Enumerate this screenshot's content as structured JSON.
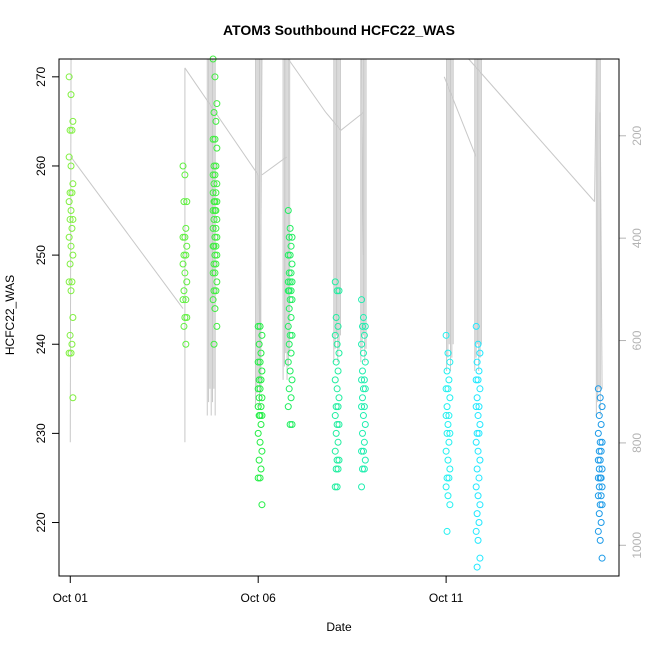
{
  "chart_data": {
    "type": "scatter",
    "title": "ATOM3 Southbound HCFC22_WAS",
    "xlabel": "Date",
    "ylabel": "HCFC22_WAS",
    "x_unit": "days since Oct 01",
    "xlim": [
      -0.3,
      14.6
    ],
    "ylim": [
      214,
      272
    ],
    "x_ticks": [
      {
        "value": 0,
        "label": "Oct 01"
      },
      {
        "value": 5,
        "label": "Oct 06"
      },
      {
        "value": 10,
        "label": "Oct 11"
      }
    ],
    "y_ticks": [
      220,
      230,
      240,
      250,
      260,
      270
    ],
    "right_axis": {
      "label": "",
      "ticks": [
        200,
        400,
        600,
        800,
        1000
      ],
      "range_top_to_bottom": [
        50,
        1060
      ],
      "color": "#b4b4b4"
    },
    "grid": false,
    "point_clusters": [
      {
        "x": 0.02,
        "color": "#80f040",
        "values": [
          270,
          268,
          265,
          264,
          264,
          261,
          260,
          258,
          257,
          257,
          256,
          255,
          254,
          254,
          253,
          252,
          251,
          250,
          249,
          247,
          247,
          246,
          243,
          241,
          240,
          239,
          239,
          234
        ]
      },
      {
        "x": 3.05,
        "color": "#60f040",
        "values": [
          260,
          259,
          256,
          256,
          253,
          252,
          252,
          251,
          250,
          250,
          249,
          248,
          247,
          246,
          245,
          245,
          243,
          243,
          242,
          240
        ]
      },
      {
        "x": 3.85,
        "color": "#40ee40",
        "values": [
          272,
          270,
          267,
          266,
          265,
          263,
          263,
          262,
          260,
          260,
          259,
          259,
          258,
          258,
          257,
          257,
          256,
          256,
          256,
          255,
          255,
          255,
          254,
          254,
          253,
          253,
          252,
          252,
          251,
          251,
          251,
          250,
          250,
          249,
          249,
          248,
          248,
          247,
          246,
          246,
          245,
          244,
          242,
          240
        ]
      },
      {
        "x": 5.05,
        "color": "#22ee44",
        "values": [
          242,
          242,
          241,
          240,
          239,
          238,
          238,
          237,
          236,
          236,
          235,
          235,
          234,
          234,
          233,
          233,
          232,
          232,
          232,
          231,
          230,
          229,
          228,
          227,
          226,
          225,
          225,
          222
        ]
      },
      {
        "x": 5.85,
        "color": "#20ee60",
        "values": [
          255,
          253,
          252,
          252,
          251,
          250,
          250,
          249,
          248,
          248,
          247,
          247,
          247,
          246,
          246,
          246,
          245,
          245,
          244,
          243,
          242,
          241,
          241,
          240,
          239,
          238,
          237,
          236,
          235,
          234,
          233,
          231,
          231
        ]
      },
      {
        "x": 7.1,
        "color": "#20eea0",
        "values": [
          247,
          246,
          246,
          243,
          242,
          241,
          240,
          239,
          238,
          237,
          236,
          235,
          234,
          233,
          233,
          232,
          231,
          231,
          230,
          229,
          228,
          227,
          227,
          226,
          226,
          224,
          224
        ]
      },
      {
        "x": 7.8,
        "color": "#20eeb0",
        "values": [
          245,
          243,
          242,
          242,
          241,
          240,
          239,
          238,
          237,
          236,
          236,
          235,
          235,
          234,
          233,
          233,
          232,
          231,
          230,
          229,
          228,
          228,
          227,
          226,
          226,
          224
        ]
      },
      {
        "x": 10.05,
        "color": "#20f0f0",
        "values": [
          241,
          239,
          238,
          237,
          236,
          235,
          235,
          234,
          233,
          232,
          232,
          231,
          230,
          230,
          229,
          228,
          227,
          226,
          225,
          225,
          224,
          223,
          222,
          219
        ]
      },
      {
        "x": 10.85,
        "color": "#20e8ff",
        "values": [
          242,
          240,
          239,
          238,
          237,
          236,
          236,
          235,
          234,
          233,
          233,
          232,
          231,
          230,
          230,
          229,
          228,
          227,
          226,
          225,
          224,
          223,
          222,
          221,
          220,
          219,
          218,
          216,
          215
        ]
      },
      {
        "x": 14.1,
        "color": "#1a9ae8",
        "values": [
          235,
          234,
          233,
          232,
          231,
          230,
          229,
          229,
          228,
          228,
          227,
          227,
          226,
          226,
          225,
          225,
          225,
          224,
          224,
          223,
          223,
          222,
          222,
          221,
          220,
          219,
          218,
          216
        ]
      }
    ],
    "altitude_trace_color": "#c8c8c8",
    "altitude_segments": [
      [
        0.0,
        229,
        0.02,
        272
      ],
      [
        0.02,
        261,
        3.0,
        244
      ],
      [
        3.05,
        229,
        3.05,
        271
      ],
      [
        3.05,
        271,
        5.0,
        259
      ],
      [
        5.0,
        259,
        5.05,
        236
      ],
      [
        5.05,
        236,
        5.1,
        272
      ],
      [
        5.1,
        259,
        5.75,
        261
      ],
      [
        5.8,
        272,
        6.8,
        266
      ],
      [
        6.8,
        266,
        7.2,
        264
      ],
      [
        7.2,
        264,
        7.8,
        266
      ],
      [
        7.75,
        272,
        7.8,
        250
      ],
      [
        7.6,
        272,
        9.95,
        273
      ],
      [
        9.95,
        270,
        10.8,
        261
      ],
      [
        10.6,
        272,
        13.95,
        256
      ],
      [
        13.95,
        256,
        14.0,
        272
      ],
      [
        14.1,
        266,
        14.15,
        235
      ]
    ],
    "altitude_spikes": [
      {
        "x": 3.75,
        "from": 232,
        "to": 272,
        "count": 7
      },
      {
        "x": 5.0,
        "from": 233,
        "to": 272,
        "count": 5
      },
      {
        "x": 5.75,
        "from": 236,
        "to": 272,
        "count": 6
      },
      {
        "x": 7.1,
        "from": 238,
        "to": 272,
        "count": 6
      },
      {
        "x": 7.8,
        "from": 238,
        "to": 272,
        "count": 5
      },
      {
        "x": 10.1,
        "from": 237,
        "to": 272,
        "count": 6
      },
      {
        "x": 10.85,
        "from": 237,
        "to": 272,
        "count": 6
      },
      {
        "x": 14.05,
        "from": 232,
        "to": 272,
        "count": 4
      }
    ]
  }
}
